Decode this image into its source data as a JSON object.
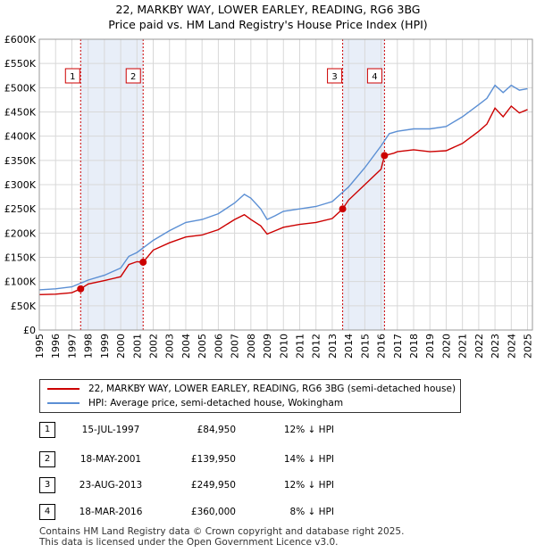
{
  "chart_data": {
    "type": "line",
    "title": "22, MARKBY WAY, LOWER EARLEY, READING, RG6 3BG",
    "subtitle": "Price paid vs. HM Land Registry's House Price Index (HPI)",
    "xlim": [
      1995,
      2025.3
    ],
    "ylim": [
      0,
      600000
    ],
    "x_ticks": [
      1995,
      1996,
      1997,
      1998,
      1999,
      2000,
      2001,
      2002,
      2003,
      2004,
      2005,
      2006,
      2007,
      2008,
      2009,
      2010,
      2011,
      2012,
      2013,
      2014,
      2015,
      2016,
      2017,
      2018,
      2019,
      2020,
      2021,
      2022,
      2023,
      2024,
      2025
    ],
    "x_tick_labels": [
      "1995",
      "1996",
      "1997",
      "1998",
      "1999",
      "2000",
      "2001",
      "2002",
      "2003",
      "2004",
      "2005",
      "2006",
      "2007",
      "2008",
      "2009",
      "2010",
      "2011",
      "2012",
      "2013",
      "2014",
      "2015",
      "2016",
      "2017",
      "2018",
      "2019",
      "2020",
      "2021",
      "2022",
      "2023",
      "2024",
      "2025"
    ],
    "y_ticks": [
      0,
      50000,
      100000,
      150000,
      200000,
      250000,
      300000,
      350000,
      400000,
      450000,
      500000,
      550000,
      600000
    ],
    "y_tick_labels": [
      "£0",
      "£50K",
      "£100K",
      "£150K",
      "£200K",
      "£250K",
      "£300K",
      "£350K",
      "£400K",
      "£450K",
      "£500K",
      "£550K",
      "£600K"
    ],
    "series": [
      {
        "name": "22, MARKBY WAY, LOWER EARLEY, READING, RG6 3BG (semi-detached house)",
        "color": "#cc0000",
        "x": [
          1995.0,
          1996.0,
          1997.0,
          1997.54,
          1998.0,
          1999.0,
          2000.0,
          2000.5,
          2001.0,
          2001.38,
          2002.0,
          2003.0,
          2004.0,
          2005.0,
          2006.0,
          2007.0,
          2007.6,
          2008.0,
          2008.6,
          2009.0,
          2009.5,
          2010.0,
          2011.0,
          2012.0,
          2013.0,
          2013.64,
          2014.0,
          2015.0,
          2016.0,
          2016.21,
          2016.8,
          2017.0,
          2018.0,
          2019.0,
          2020.0,
          2021.0,
          2022.0,
          2022.5,
          2023.0,
          2023.5,
          2024.0,
          2024.5,
          2025.0
        ],
        "y": [
          73000,
          74000,
          77000,
          84950,
          95000,
          102000,
          110000,
          135000,
          141000,
          139950,
          165000,
          180000,
          192000,
          196000,
          207000,
          228000,
          238000,
          228000,
          215000,
          198000,
          205000,
          212000,
          218000,
          222000,
          230000,
          249950,
          268000,
          300000,
          332000,
          360000,
          365000,
          368000,
          372000,
          368000,
          370000,
          385000,
          410000,
          425000,
          458000,
          440000,
          462000,
          448000,
          455000
        ]
      },
      {
        "name": "HPI: Average price, semi-detached house, Wokingham",
        "color": "#5b8fd4",
        "x": [
          1995.0,
          1996.0,
          1997.0,
          1998.0,
          1999.0,
          2000.0,
          2000.5,
          2001.0,
          2002.0,
          2003.0,
          2004.0,
          2005.0,
          2006.0,
          2007.0,
          2007.6,
          2008.0,
          2008.6,
          2009.0,
          2009.5,
          2010.0,
          2011.0,
          2012.0,
          2013.0,
          2014.0,
          2015.0,
          2016.0,
          2016.5,
          2017.0,
          2018.0,
          2019.0,
          2020.0,
          2021.0,
          2022.0,
          2022.5,
          2023.0,
          2023.5,
          2024.0,
          2024.5,
          2025.0
        ],
        "y": [
          83000,
          85000,
          89000,
          103000,
          113000,
          128000,
          152000,
          160000,
          185000,
          205000,
          222000,
          228000,
          240000,
          262000,
          280000,
          272000,
          250000,
          228000,
          236000,
          245000,
          250000,
          255000,
          265000,
          295000,
          335000,
          380000,
          405000,
          410000,
          415000,
          415000,
          420000,
          440000,
          465000,
          478000,
          505000,
          490000,
          505000,
          495000,
          498000
        ]
      }
    ],
    "sales": [
      {
        "id": "1",
        "x": 1997.54,
        "y": 84950
      },
      {
        "id": "2",
        "x": 2001.38,
        "y": 139950
      },
      {
        "id": "3",
        "x": 2013.64,
        "y": 249950
      },
      {
        "id": "4",
        "x": 2016.21,
        "y": 360000
      }
    ],
    "shaded_spans": [
      [
        1997.54,
        2001.38
      ],
      [
        2013.64,
        2016.21
      ]
    ]
  },
  "legend": {
    "price_paid": "22, MARKBY WAY, LOWER EARLEY, READING, RG6 3BG (semi-detached house)",
    "hpi": "HPI: Average price, semi-detached house, Wokingham"
  },
  "transactions": [
    {
      "num": "1",
      "date": "15-JUL-1997",
      "price": "£84,950",
      "rel": "12% ↓ HPI"
    },
    {
      "num": "2",
      "date": "18-MAY-2001",
      "price": "£139,950",
      "rel": "14% ↓ HPI"
    },
    {
      "num": "3",
      "date": "23-AUG-2013",
      "price": "£249,950",
      "rel": "12% ↓ HPI"
    },
    {
      "num": "4",
      "date": "18-MAR-2016",
      "price": "£360,000",
      "rel": "8% ↓ HPI"
    }
  ],
  "footer": {
    "line1": "Contains HM Land Registry data © Crown copyright and database right 2025.",
    "line2": "This data is licensed under the Open Government Licence v3.0."
  }
}
